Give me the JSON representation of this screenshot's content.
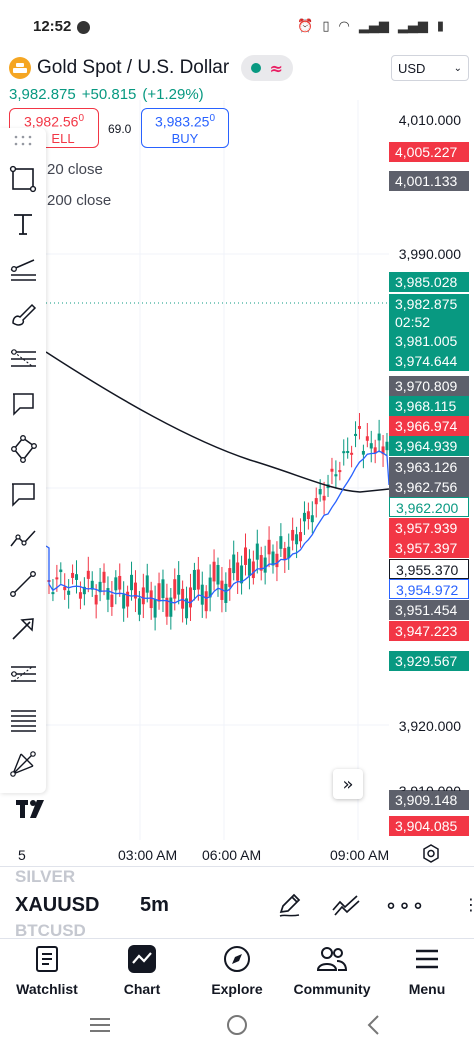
{
  "status_bar": {
    "time": "12:52",
    "battery_icon": "battery-icon"
  },
  "header": {
    "symbol_title": "Gold Spot / U.S. Dollar",
    "currency": "USD",
    "last_price": "3,982.875",
    "change": "+50.815",
    "change_pct": "(+1.29%)",
    "sell_price": "3,982.56",
    "sell_price_sup": "0",
    "sell_label": "SELL",
    "sell_label_visible": "ELL",
    "spread": "69.0",
    "buy_price": "3,983.25",
    "buy_price_sup": "0",
    "buy_label": "BUY"
  },
  "indicators": [
    {
      "label": "20 close",
      "color": "#2962ff"
    },
    {
      "label": "200 close",
      "color": "#131722"
    }
  ],
  "price_axis": {
    "grid_labels": [
      "4,010.000",
      "3,990.000",
      "3,920.000",
      "3,910.000"
    ],
    "badges": [
      {
        "value": "4,005.227",
        "bg": "#f23645",
        "fg": "#ffffff"
      },
      {
        "value": "4,001.133",
        "bg": "#5d606b",
        "fg": "#ffffff"
      },
      {
        "value": "3,985.028",
        "bg": "#089981",
        "fg": "#ffffff"
      },
      {
        "value": "3,982.875",
        "bg": "#089981",
        "fg": "#ffffff"
      },
      {
        "value": "02:52",
        "bg": "#089981",
        "fg": "#ffffff"
      },
      {
        "value": "3,981.005",
        "bg": "#089981",
        "fg": "#ffffff"
      },
      {
        "value": "3,974.644",
        "bg": "#089981",
        "fg": "#ffffff"
      },
      {
        "value": "3,970.809",
        "bg": "#5d606b",
        "fg": "#ffffff"
      },
      {
        "value": "3,968.115",
        "bg": "#089981",
        "fg": "#ffffff"
      },
      {
        "value": "3,966.974",
        "bg": "#f23645",
        "fg": "#ffffff"
      },
      {
        "value": "3,964.939",
        "bg": "#089981",
        "fg": "#ffffff"
      },
      {
        "value": "3,963.126",
        "bg": "#5d606b",
        "fg": "#ffffff"
      },
      {
        "value": "3,962.756",
        "bg": "#5d606b",
        "fg": "#ffffff"
      },
      {
        "value": "3,962.200",
        "bg": "#ffffff",
        "fg": "#089981",
        "border": "#089981"
      },
      {
        "value": "3,957.939",
        "bg": "#f23645",
        "fg": "#ffffff"
      },
      {
        "value": "3,957.397",
        "bg": "#f23645",
        "fg": "#ffffff"
      },
      {
        "value": "3,955.370",
        "bg": "#ffffff",
        "fg": "#131722",
        "border": "#131722"
      },
      {
        "value": "3,954.972",
        "bg": "#ffffff",
        "fg": "#2962ff",
        "border": "#2962ff"
      },
      {
        "value": "3,951.454",
        "bg": "#5d606b",
        "fg": "#ffffff"
      },
      {
        "value": "3,947.223",
        "bg": "#f23645",
        "fg": "#ffffff"
      },
      {
        "value": "3,929.567",
        "bg": "#089981",
        "fg": "#ffffff"
      },
      {
        "value": "3,909.148",
        "bg": "#5d606b",
        "fg": "#ffffff"
      },
      {
        "value": "3,904.085",
        "bg": "#f23645",
        "fg": "#ffffff"
      }
    ]
  },
  "time_axis": {
    "labels": [
      "5",
      "03:00 AM",
      "06:00 AM",
      "09:00 AM"
    ]
  },
  "toolbar": {
    "tools": [
      "drag-handle-icon",
      "rectangle-icon",
      "text-icon",
      "trend-angle-icon",
      "brush-icon",
      "fib-retracement-icon",
      "callout-icon",
      "polygon-icon",
      "comment-icon",
      "path-icon",
      "line-icon",
      "arrow-icon",
      "fib-extension-icon",
      "horizontal-lines-icon",
      "pitchfork-icon"
    ]
  },
  "logo": "TV",
  "ticker_bar": {
    "prev_symbol": "SILVER",
    "symbol": "XAUUSD",
    "timeframe": "5m",
    "next_symbol": "BTCUSD"
  },
  "bottom_nav": [
    {
      "label": "Watchlist",
      "icon": "watchlist-icon"
    },
    {
      "label": "Chart",
      "icon": "chart-icon"
    },
    {
      "label": "Explore",
      "icon": "compass-icon"
    },
    {
      "label": "Community",
      "icon": "community-icon"
    },
    {
      "label": "Menu",
      "icon": "menu-icon"
    }
  ],
  "colors": {
    "up": "#089981",
    "down": "#f23645",
    "ma20": "#2962ff",
    "ma200": "#131722"
  }
}
